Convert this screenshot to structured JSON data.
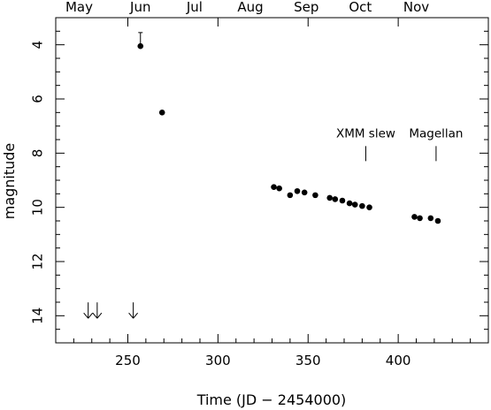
{
  "chart_data": {
    "type": "scatter",
    "xlabel": "Time (JD − 2454000)",
    "ylabel": "magnitude",
    "xlim": [
      210,
      450
    ],
    "ylim": [
      15,
      3
    ],
    "y_inverted": true,
    "x_ticks": [
      250,
      300,
      350,
      400
    ],
    "y_ticks": [
      4,
      6,
      8,
      10,
      12,
      14
    ],
    "top_axis_months": [
      {
        "label": "May",
        "x": 223
      },
      {
        "label": "Jun",
        "x": 257
      },
      {
        "label": "Jul",
        "x": 287
      },
      {
        "label": "Aug",
        "x": 318
      },
      {
        "label": "Sep",
        "x": 349
      },
      {
        "label": "Oct",
        "x": 379
      },
      {
        "label": "Nov",
        "x": 410
      }
    ],
    "points": [
      {
        "x": 257,
        "y": 4.05
      },
      {
        "x": 269,
        "y": 6.5
      },
      {
        "x": 331,
        "y": 9.25
      },
      {
        "x": 334,
        "y": 9.3
      },
      {
        "x": 340,
        "y": 9.55
      },
      {
        "x": 344,
        "y": 9.4
      },
      {
        "x": 348,
        "y": 9.45
      },
      {
        "x": 354,
        "y": 9.55
      },
      {
        "x": 362,
        "y": 9.65
      },
      {
        "x": 365,
        "y": 9.7
      },
      {
        "x": 369,
        "y": 9.75
      },
      {
        "x": 373,
        "y": 9.85
      },
      {
        "x": 376,
        "y": 9.9
      },
      {
        "x": 380,
        "y": 9.95
      },
      {
        "x": 384,
        "y": 10.0
      },
      {
        "x": 409,
        "y": 10.35
      },
      {
        "x": 412,
        "y": 10.4
      },
      {
        "x": 418,
        "y": 10.4
      },
      {
        "x": 422,
        "y": 10.5
      }
    ],
    "error_bars": [
      {
        "x": 257,
        "y": 4.05,
        "upper": 3.55
      }
    ],
    "upper_limits": [
      {
        "x": 228,
        "y": 13.8
      },
      {
        "x": 233,
        "y": 13.8
      },
      {
        "x": 253,
        "y": 13.8
      }
    ],
    "annotations": [
      {
        "text": "XMM slew",
        "x": 382,
        "y": 8.0
      },
      {
        "text": "Magellan",
        "x": 421,
        "y": 8.0
      }
    ],
    "grid": false
  }
}
